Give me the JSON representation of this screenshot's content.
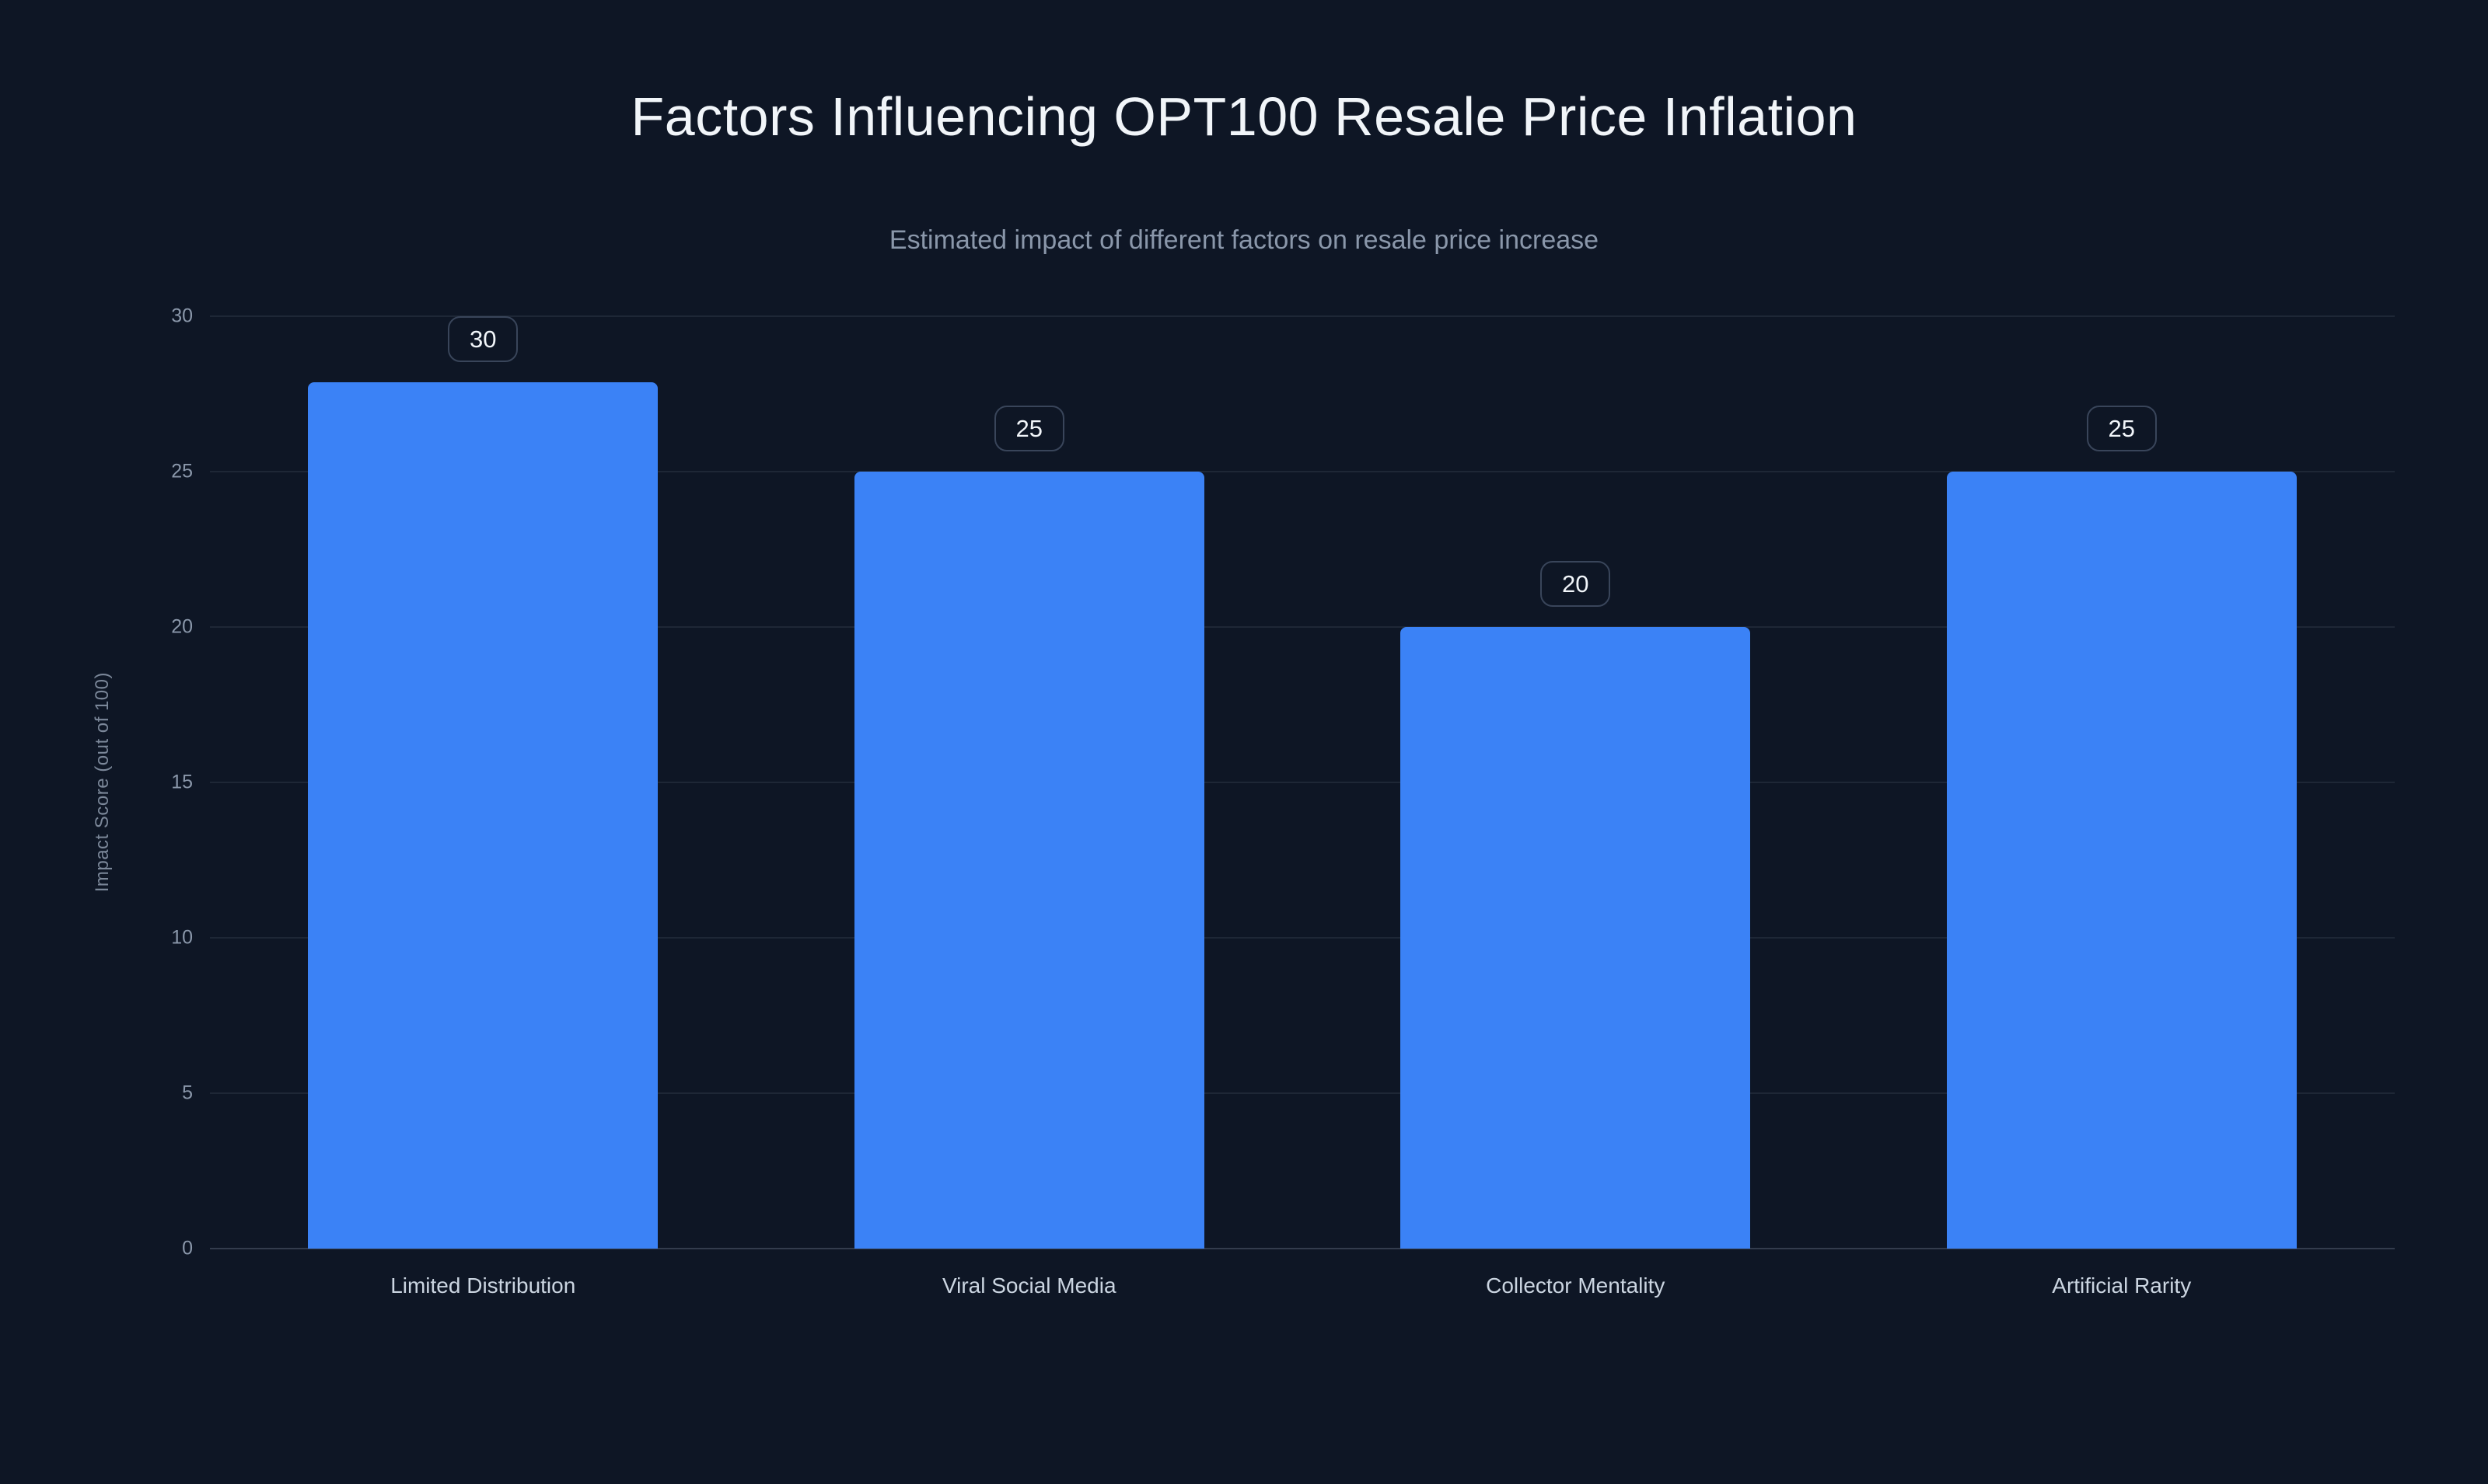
{
  "page": {
    "title": "Factors Influencing OPT100 Resale Price Inflation",
    "subtitle": "Estimated impact of different factors on resale price increase"
  },
  "chart_data": {
    "type": "bar",
    "title": "Factors Influencing OPT100 Resale Price Inflation",
    "subtitle": "Estimated impact of different factors on resale price increase",
    "categories": [
      "Limited Distribution",
      "Viral Social Media",
      "Collector Mentality",
      "Artificial Rarity"
    ],
    "values": [
      30,
      25,
      20,
      25
    ],
    "data_labels": [
      "30",
      "25",
      "20",
      "25"
    ],
    "xlabel": "",
    "ylabel": "Impact Score (out of 100)",
    "ylim": [
      0,
      30
    ],
    "yticks": [
      0,
      5,
      10,
      15,
      20,
      25,
      30
    ],
    "grid": true,
    "legend": false,
    "bar_color": "#3b82f6",
    "background_color": "#0e1625"
  }
}
